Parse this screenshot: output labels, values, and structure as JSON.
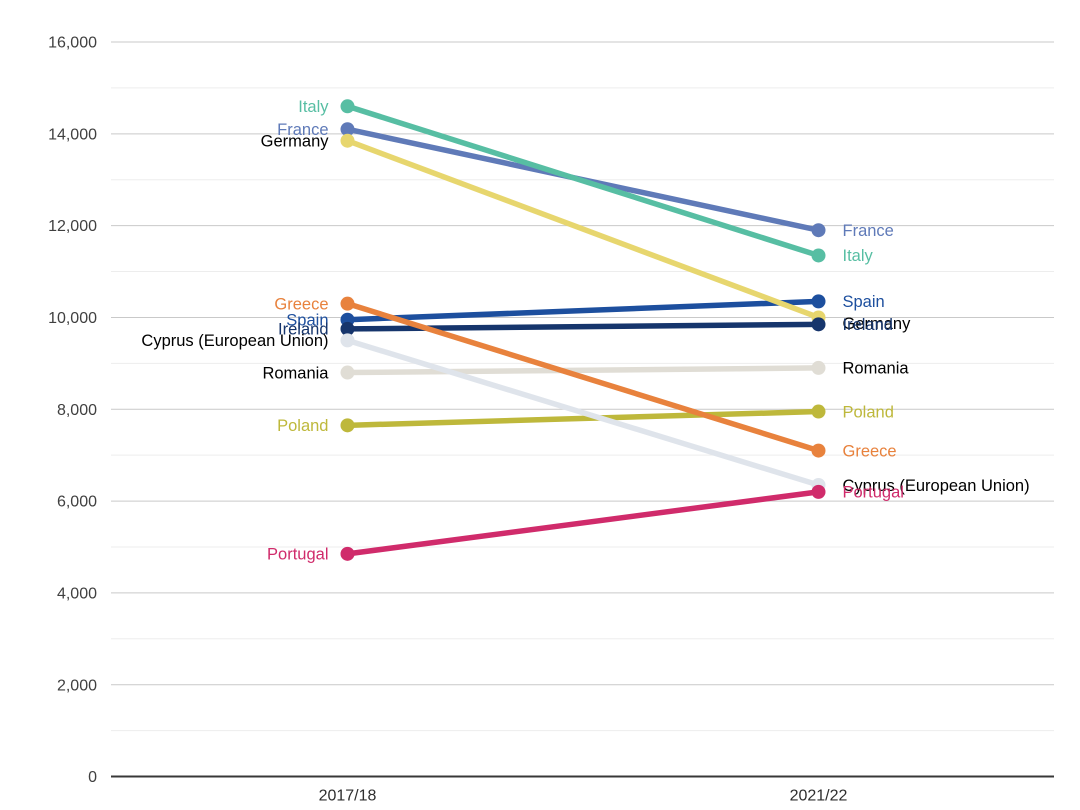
{
  "chart_data": {
    "type": "line",
    "variant": "slope",
    "title": "",
    "xlabel": "",
    "ylabel": "",
    "categories": [
      "2017/18",
      "2021/22"
    ],
    "series": [
      {
        "name": "France",
        "values": [
          14100,
          11900
        ],
        "color": "#5F7AB8",
        "label_color": "#5F7AB8"
      },
      {
        "name": "Italy",
        "values": [
          14600,
          11350
        ],
        "color": "#57BEA3",
        "label_color": "#57BEA3"
      },
      {
        "name": "Spain",
        "values": [
          9950,
          10350
        ],
        "color": "#1D4F9E",
        "label_color": "#1D4F9E"
      },
      {
        "name": "Germany",
        "values": [
          13850,
          10000
        ],
        "color": "#E7D66E",
        "label_color": "#000000",
        "right_label_dy": 6
      },
      {
        "name": "Ireland",
        "values": [
          9750,
          9850
        ],
        "color": "#16356C",
        "label_color": "#16356C"
      },
      {
        "name": "Romania",
        "values": [
          8800,
          8900
        ],
        "color": "#E0DDD5",
        "label_color": "#000000"
      },
      {
        "name": "Poland",
        "values": [
          7650,
          7950
        ],
        "color": "#BEB83B",
        "label_color": "#BEB83B"
      },
      {
        "name": "Greece",
        "values": [
          10300,
          7100
        ],
        "color": "#E8823D",
        "label_color": "#E8823D"
      },
      {
        "name": "Cyprus (European Union)",
        "values": [
          9500,
          6350
        ],
        "color": "#DFE4EB",
        "label_color": "#000000"
      },
      {
        "name": "Portugal",
        "values": [
          4850,
          6200
        ],
        "color": "#D02B6B",
        "label_color": "#D02B6B"
      }
    ],
    "ylim": [
      0,
      16000
    ],
    "y_major_step": 2000,
    "y_minor_step": 1000,
    "y_tick_labels": [
      "0",
      "2,000",
      "4,000",
      "6,000",
      "8,000",
      "10,000",
      "12,000",
      "14,000",
      "16,000"
    ],
    "grid": true,
    "legend_position": "inline-labels",
    "draw_order": "descending 2021/22 value (later series drawn on top)",
    "colors": {
      "background": "#FFFFFF",
      "major_gridline": "#C9C9C9",
      "minor_gridline": "#EDEDED",
      "axis_baseline": "#383838",
      "tick_label": "#404040",
      "x_axis_label": "#2E2E2E"
    }
  }
}
